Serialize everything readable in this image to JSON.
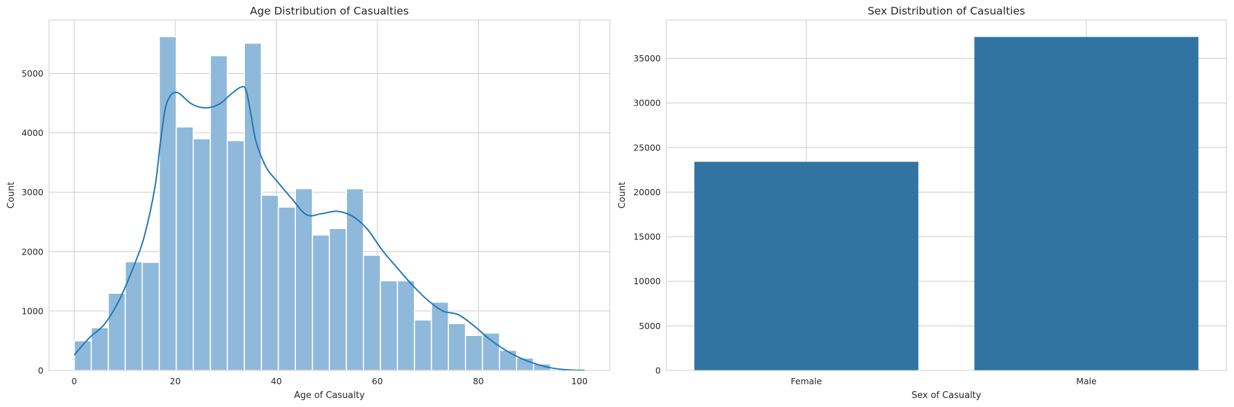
{
  "chart_data": [
    {
      "type": "bar",
      "title": "Age Distribution of Casualties",
      "xlabel": "Age of Casualty",
      "ylabel": "Count",
      "xlim": [
        -5,
        106
      ],
      "ylim": [
        0,
        5900
      ],
      "xticks": [
        0,
        20,
        40,
        60,
        80,
        100
      ],
      "yticks": [
        0,
        1000,
        2000,
        3000,
        4000,
        5000
      ],
      "grid": true,
      "bin_start": 0,
      "bin_width": 3.367,
      "bin_counts": [
        500,
        720,
        1300,
        1830,
        1820,
        5620,
        4100,
        3900,
        5300,
        3870,
        5510,
        2950,
        2750,
        3060,
        2280,
        2390,
        3060,
        1940,
        1510,
        1510,
        850,
        1150,
        790,
        590,
        630,
        340,
        210,
        110,
        10,
        5
      ],
      "kde": {
        "x": [
          0,
          3,
          6,
          9,
          12,
          14,
          16,
          17,
          18,
          19,
          20,
          21,
          23,
          25,
          27,
          29,
          31,
          33,
          34,
          35,
          36,
          38,
          40,
          43,
          46,
          49,
          52,
          55,
          58,
          61,
          64,
          67,
          70,
          73,
          76,
          79,
          82,
          85,
          88,
          91,
          94,
          97,
          101
        ],
        "y": [
          260,
          550,
          780,
          1200,
          1800,
          2300,
          3100,
          3800,
          4400,
          4620,
          4680,
          4650,
          4500,
          4430,
          4430,
          4500,
          4650,
          4770,
          4720,
          4300,
          3850,
          3420,
          3200,
          2900,
          2620,
          2640,
          2680,
          2600,
          2380,
          2020,
          1720,
          1430,
          1180,
          1000,
          940,
          760,
          540,
          360,
          220,
          120,
          50,
          15,
          2
        ]
      }
    },
    {
      "type": "bar",
      "title": "Sex Distribution of Casualties",
      "xlabel": "Sex of Casualty",
      "ylabel": "Count",
      "categories": [
        "Female",
        "Male"
      ],
      "values": [
        23400,
        37400
      ],
      "ylim": [
        0,
        39300
      ],
      "yticks": [
        0,
        5000,
        10000,
        15000,
        20000,
        25000,
        30000,
        35000
      ],
      "grid": true,
      "color": "#3274a1"
    }
  ]
}
